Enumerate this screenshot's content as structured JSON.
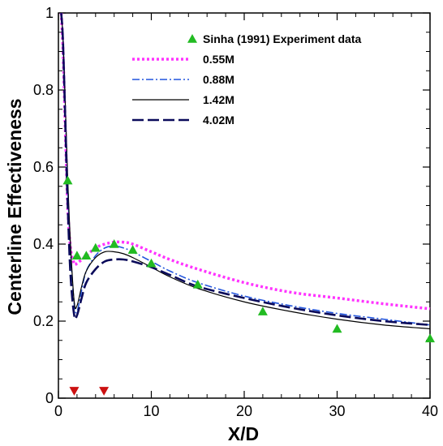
{
  "chart_data": {
    "type": "line",
    "xlabel": "X/D",
    "ylabel": "Centerline Effectiveness",
    "xlim": [
      0,
      40
    ],
    "ylim": [
      0,
      1
    ],
    "x_ticks": [
      "0",
      "10",
      "20",
      "30",
      "40"
    ],
    "y_ticks": [
      "0",
      "0.2",
      "0.4",
      "0.6",
      "0.8",
      "1"
    ],
    "grid": false,
    "legend_position": "top-right",
    "series": [
      {
        "name": "Sinha (1991) Experiment data",
        "kind": "scatter",
        "marker": "triangle-up",
        "color": "#22bb22",
        "x": [
          1,
          2,
          3,
          4,
          6,
          8,
          10,
          15,
          22,
          30,
          40
        ],
        "y": [
          0.565,
          0.37,
          0.37,
          0.39,
          0.4,
          0.385,
          0.35,
          0.295,
          0.225,
          0.18,
          0.155
        ]
      },
      {
        "name": "0.55M",
        "kind": "line",
        "dash": "dotted",
        "color": "#ff33ff",
        "x": [
          0.3,
          0.5,
          0.8,
          1.0,
          1.3,
          1.7,
          2.0,
          3.0,
          4.0,
          5.0,
          6.0,
          7.0,
          8.0,
          10.0,
          12.0,
          15.0,
          20.0,
          25.0,
          30.0,
          35.0,
          40.0
        ],
        "y": [
          1.0,
          0.9,
          0.65,
          0.5,
          0.39,
          0.35,
          0.35,
          0.37,
          0.39,
          0.4,
          0.405,
          0.405,
          0.4,
          0.38,
          0.36,
          0.335,
          0.3,
          0.275,
          0.26,
          0.245,
          0.232
        ]
      },
      {
        "name": "0.88M",
        "kind": "line",
        "dash": "dash-dot",
        "color": "#2255dd",
        "x": [
          0.3,
          0.5,
          0.8,
          1.0,
          1.3,
          1.7,
          2.0,
          2.5,
          3.0,
          4.0,
          5.0,
          6.0,
          7.0,
          8.0,
          10.0,
          12.0,
          15.0,
          20.0,
          25.0,
          30.0,
          35.0,
          40.0
        ],
        "y": [
          1.0,
          0.93,
          0.7,
          0.55,
          0.38,
          0.245,
          0.225,
          0.28,
          0.33,
          0.37,
          0.39,
          0.395,
          0.39,
          0.38,
          0.355,
          0.33,
          0.3,
          0.265,
          0.24,
          0.22,
          0.205,
          0.19
        ]
      },
      {
        "name": "1.42M",
        "kind": "line",
        "dash": "solid",
        "color": "#000000",
        "x": [
          0.3,
          0.5,
          0.8,
          1.0,
          1.3,
          1.7,
          2.0,
          2.5,
          3.0,
          4.0,
          5.0,
          6.0,
          7.0,
          8.0,
          10.0,
          12.0,
          15.0,
          20.0,
          25.0,
          30.0,
          35.0,
          40.0
        ],
        "y": [
          1.0,
          0.93,
          0.72,
          0.57,
          0.4,
          0.25,
          0.24,
          0.29,
          0.33,
          0.365,
          0.38,
          0.38,
          0.375,
          0.365,
          0.34,
          0.315,
          0.285,
          0.25,
          0.225,
          0.205,
          0.19,
          0.18
        ]
      },
      {
        "name": "4.02M",
        "kind": "line",
        "dash": "long-dash",
        "color": "#0a0a5a",
        "x": [
          0.3,
          0.5,
          0.8,
          1.0,
          1.3,
          1.7,
          2.0,
          2.5,
          3.0,
          4.0,
          5.0,
          6.0,
          7.0,
          8.0,
          10.0,
          12.0,
          15.0,
          20.0,
          25.0,
          30.0,
          35.0,
          40.0
        ],
        "y": [
          1.0,
          0.92,
          0.66,
          0.5,
          0.32,
          0.215,
          0.215,
          0.26,
          0.3,
          0.335,
          0.355,
          0.36,
          0.36,
          0.355,
          0.34,
          0.32,
          0.29,
          0.26,
          0.235,
          0.215,
          0.2,
          0.19
        ]
      }
    ],
    "annotations": {
      "markers": [
        {
          "x": 1.7,
          "y": 0.015,
          "shape": "triangle-down",
          "color": "#cc1111"
        },
        {
          "x": 4.9,
          "y": 0.015,
          "shape": "triangle-down",
          "color": "#cc1111"
        }
      ]
    }
  }
}
